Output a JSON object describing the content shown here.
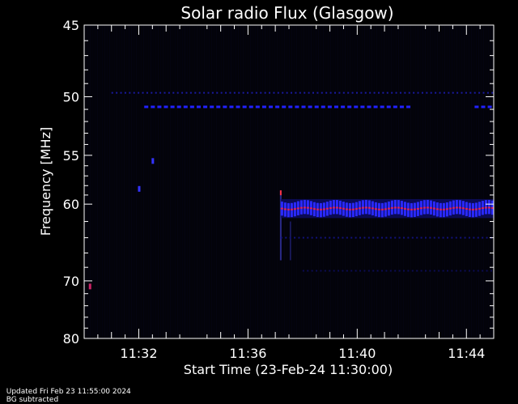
{
  "chart_data": {
    "type": "heatmap",
    "title": "Solar radio Flux (Glasgow)",
    "xlabel": "Start Time (23-Feb-24 11:30:00)",
    "ylabel": "Frequency [MHz]",
    "x_range_minutes": [
      0,
      15
    ],
    "x_ticks": [
      {
        "minute": 2,
        "label": "11:32"
      },
      {
        "minute": 6,
        "label": "11:36"
      },
      {
        "minute": 10,
        "label": "11:40"
      },
      {
        "minute": 14,
        "label": "11:44"
      }
    ],
    "y_scale": "reciprocal",
    "y_range_mhz": [
      45,
      80
    ],
    "y_ticks": [
      45,
      50,
      55,
      60,
      70,
      80
    ],
    "y_minor_ticks": [
      46,
      47,
      48,
      49,
      51,
      52,
      53,
      54,
      56,
      57,
      58,
      59,
      62,
      64,
      66,
      68,
      72,
      74,
      76,
      78
    ],
    "features": [
      {
        "kind": "interference-band",
        "freq_mhz": 50.8,
        "minute_start": 2.2,
        "minute_end": 12.0,
        "color": "#2222ff"
      },
      {
        "kind": "interference-band",
        "freq_mhz": 50.8,
        "minute_start": 14.3,
        "minute_end": 15.0,
        "color": "#2222ff"
      },
      {
        "kind": "weak-band",
        "freq_mhz": 49.7,
        "minute_start": 1.0,
        "minute_end": 15.0,
        "color": "#1a1aa0"
      },
      {
        "kind": "broadband-onset",
        "minute": 7.2,
        "freq_low_mhz": 58.5,
        "freq_high_mhz": 67.0,
        "color": "#ff3344"
      },
      {
        "kind": "emission-band",
        "freq_mhz": 60.5,
        "width_mhz": 1.6,
        "minute_start": 7.2,
        "minute_end": 15.0,
        "color": "#2a2aff",
        "peak_color": "#ff2233"
      },
      {
        "kind": "weak-band",
        "freq_mhz": 64.0,
        "minute_start": 7.2,
        "minute_end": 15.0,
        "color": "#12127a"
      },
      {
        "kind": "weak-band",
        "freq_mhz": 68.5,
        "minute_start": 8.0,
        "minute_end": 15.0,
        "color": "#0c0c55"
      },
      {
        "kind": "spot",
        "freq_mhz": 70.8,
        "minute": 0.2,
        "color": "#cc2266"
      },
      {
        "kind": "spot",
        "freq_mhz": 58.3,
        "minute": 2.0,
        "color": "#3333ff"
      },
      {
        "kind": "spot",
        "freq_mhz": 55.5,
        "minute": 2.5,
        "color": "#3333ff"
      }
    ],
    "colors": {
      "background": "#000000",
      "axis": "#ffffff",
      "text": "#ffffff"
    }
  },
  "footer": {
    "updated": "Updated Fri Feb 23 11:55:00 2024",
    "mode": "BG subtracted"
  }
}
